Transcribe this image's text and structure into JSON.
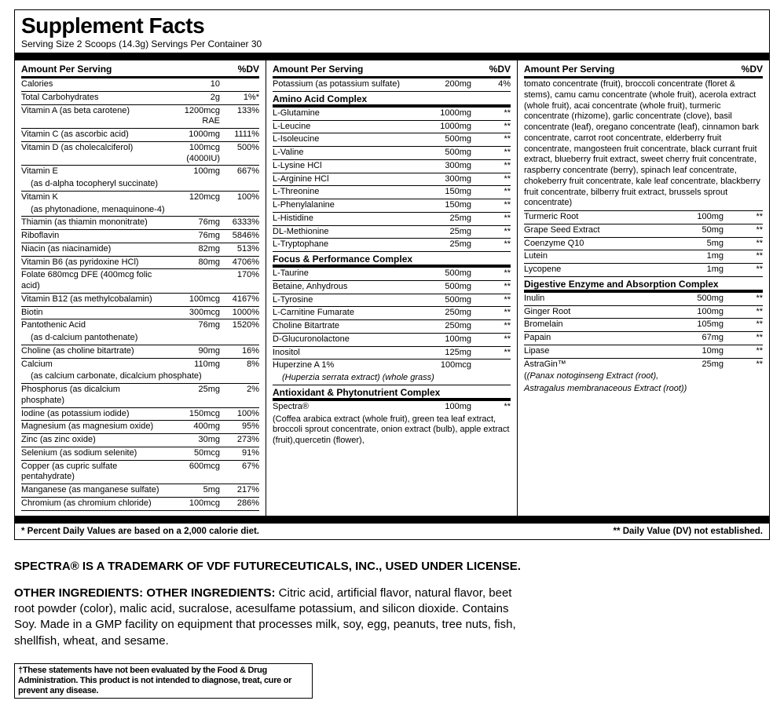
{
  "title": "Supplement Facts",
  "serving": "Serving Size 2 Scoops (14.3g)   Servings Per Container 30",
  "heads": {
    "amount": "Amount Per Serving",
    "dv": "%DV"
  },
  "col1": [
    {
      "n": "Calories",
      "a": "10",
      "d": ""
    },
    {
      "n": "Total Carbohydrates",
      "a": "2g",
      "d": "1%*"
    },
    {
      "n": "Vitamin A (as beta carotene)",
      "a": "1200mcg RAE",
      "d": "133%"
    },
    {
      "n": "Vitamin C (as ascorbic acid)",
      "a": "1000mg",
      "d": "1111%"
    },
    {
      "n": "Vitamin D (as cholecalciferol)",
      "a": "100mcg (4000IU)",
      "d": "500%"
    },
    {
      "n": "Vitamin E",
      "a": "100mg",
      "d": "667%",
      "nb": true
    },
    {
      "n": "  (as d-alpha tocopheryl succinate)",
      "a": "",
      "d": "",
      "sub": true
    },
    {
      "n": "Vitamin K",
      "a": "120mcg",
      "d": "100%",
      "nb": true
    },
    {
      "n": "  (as phytonadione, menaquinone-4)",
      "a": "",
      "d": "",
      "sub": true
    },
    {
      "n": "Thiamin (as thiamin mononitrate)",
      "a": "76mg",
      "d": "6333%"
    },
    {
      "n": "Riboflavin",
      "a": "76mg",
      "d": "5846%"
    },
    {
      "n": "Niacin (as niacinamide)",
      "a": "82mg",
      "d": "513%"
    },
    {
      "n": "Vitamin B6 (as pyridoxine HCl)",
      "a": "80mg",
      "d": "4706%"
    },
    {
      "n": "Folate        680mcg DFE (400mcg folic acid)",
      "a": "",
      "d": "170%"
    },
    {
      "n": "Vitamin B12 (as methylcobalamin)",
      "a": "100mcg",
      "d": "4167%"
    },
    {
      "n": "Biotin",
      "a": "300mcg",
      "d": "1000%"
    },
    {
      "n": "Pantothenic Acid",
      "a": "76mg",
      "d": "1520%",
      "nb": true
    },
    {
      "n": "  (as d-calcium pantothenate)",
      "a": "",
      "d": "",
      "sub": true
    },
    {
      "n": "Choline (as choline bitartrate)",
      "a": "90mg",
      "d": "16%"
    },
    {
      "n": "Calcium",
      "a": "110mg",
      "d": "8%",
      "nb": true
    },
    {
      "n": "  (as calcium carbonate, dicalcium phosphate)",
      "a": "",
      "d": "",
      "sub": true
    },
    {
      "n": "Phosphorus (as dicalcium phosphate)",
      "a": "25mg",
      "d": "2%"
    },
    {
      "n": "Iodine (as potassium iodide)",
      "a": "150mcg",
      "d": "100%"
    },
    {
      "n": "Magnesium (as magnesium oxide)",
      "a": "400mg",
      "d": "95%"
    },
    {
      "n": "Zinc (as zinc oxide)",
      "a": "30mg",
      "d": "273%"
    },
    {
      "n": "Selenium (as sodium selenite)",
      "a": "50mcg",
      "d": "91%"
    },
    {
      "n": "Copper (as cupric sulfate pentahydrate)",
      "a": "600mcg",
      "d": "67%"
    },
    {
      "n": "Manganese (as manganese sulfate)",
      "a": "5mg",
      "d": "217%"
    },
    {
      "n": "Chromium (as chromium chloride)",
      "a": "100mcg",
      "d": "286%"
    }
  ],
  "col2_top": [
    {
      "n": "Potassium (as potassium sulfate)",
      "a": "200mg",
      "d": "4%"
    }
  ],
  "sections2": [
    {
      "title": "Amino Acid Complex",
      "rows": [
        {
          "n": "L-Glutamine",
          "a": "1000mg",
          "d": "**"
        },
        {
          "n": "L-Leucine",
          "a": "1000mg",
          "d": "**"
        },
        {
          "n": "L-Isoleucine",
          "a": "500mg",
          "d": "**"
        },
        {
          "n": "L-Valine",
          "a": "500mg",
          "d": "**"
        },
        {
          "n": "L-Lysine HCl",
          "a": "300mg",
          "d": "**"
        },
        {
          "n": "L-Arginine HCl",
          "a": "300mg",
          "d": "**"
        },
        {
          "n": "L-Threonine",
          "a": "150mg",
          "d": "**"
        },
        {
          "n": "L-Phenylalanine",
          "a": "150mg",
          "d": "**"
        },
        {
          "n": "L-Histidine",
          "a": "25mg",
          "d": "**"
        },
        {
          "n": "DL-Methionine",
          "a": "25mg",
          "d": "**"
        },
        {
          "n": "L-Tryptophane",
          "a": "25mg",
          "d": "**"
        }
      ]
    },
    {
      "title": "Focus & Performance Complex",
      "rows": [
        {
          "n": "L-Taurine",
          "a": "500mg",
          "d": "**"
        },
        {
          "n": "Betaine, Anhydrous",
          "a": "500mg",
          "d": "**"
        },
        {
          "n": "L-Tyrosine",
          "a": "500mg",
          "d": "**"
        },
        {
          "n": "L-Carnitine Fumarate",
          "a": "250mg",
          "d": "**"
        },
        {
          "n": "Choline Bitartrate",
          "a": "250mg",
          "d": "**"
        },
        {
          "n": "D-Glucuronolactone",
          "a": "100mg",
          "d": "**"
        },
        {
          "n": "Inositol",
          "a": "125mg",
          "d": "**"
        },
        {
          "n": "Huperzine A 1%",
          "a": "100mcg",
          "d": "",
          "nb": true
        },
        {
          "n": "   (Huperzia serrata extract) (whole grass)",
          "a": "",
          "d": "",
          "sub": true,
          "ital": true
        }
      ]
    },
    {
      "title": "Antioxidant & Phytonutrient Complex",
      "rows": [
        {
          "n": "Spectra®",
          "a": "100mg",
          "d": "**",
          "nb": true
        }
      ]
    }
  ],
  "spectra_desc": "(Coffea arabica extract (whole fruit), green tea leaf extract, broccoli sprout concentrate, onion extract (bulb), apple extract (fruit),quercetin (flower),",
  "col3_cont": "tomato concentrate (fruit), broccoli concentrate (floret & stems), camu camu concentrate (whole fruit), acerola extract (whole fruit), acai concentrate (whole fruit), turmeric concentrate (rhizome), garlic concentrate (clove), basil concentrate (leaf), oregano concentrate (leaf), cinnamon bark concentrate, carrot root concentrate, elderberry fruit concentrate, mangosteen fruit concentrate, black currant fruit extract, blueberry fruit extract, sweet cherry fruit concentrate, raspberry concentrate (berry), spinach leaf concentrate, chokeberry fruit concentrate, kale leaf concentrate, blackberry fruit concentrate, bilberry fruit extract, brussels sprout concentrate)",
  "col3_rows": [
    {
      "n": "Turmeric Root",
      "a": "100mg",
      "d": "**"
    },
    {
      "n": "Grape Seed Extract",
      "a": "50mg",
      "d": "**"
    },
    {
      "n": "Coenzyme Q10",
      "a": "5mg",
      "d": "**"
    },
    {
      "n": "Lutein",
      "a": "1mg",
      "d": "**"
    },
    {
      "n": "Lycopene",
      "a": "1mg",
      "d": "**"
    }
  ],
  "section3": {
    "title": "Digestive Enzyme and Absorption Complex",
    "rows": [
      {
        "n": "Inulin",
        "a": "500mg",
        "d": "**"
      },
      {
        "n": "Ginger Root",
        "a": "100mg",
        "d": "**"
      },
      {
        "n": "Bromelain",
        "a": "105mg",
        "d": "**"
      },
      {
        "n": "Papain",
        "a": "67mg",
        "d": "**"
      },
      {
        "n": "Lipase",
        "a": "10mg",
        "d": "**"
      },
      {
        "n": "AstraGin™",
        "a": "25mg",
        "d": "**",
        "nb": true
      }
    ]
  },
  "astragin_desc1": "(Panax notoginseng Extract (root),",
  "astragin_desc2": "Astragalus membranaceous Extract (root))",
  "foot_left": "* Percent Daily Values are based on a 2,000 calorie diet.",
  "foot_right": "** Daily Value (DV) not established.",
  "trademark": "SPECTRA® IS A TRADEMARK OF VDF FUTURECEUTICALS, INC., USED UNDER LICENSE.",
  "other_label": "OTHER INGREDIENTS: OTHER INGREDIENTS:",
  "other_text": " Citric acid, artificial flavor, natural flavor, beet root powder (color), malic acid, sucralose, acesulfame potassium, and silicon dioxide. Contains Soy. Made in a GMP facility on equipment that processes milk, soy, egg, peanuts, tree nuts, fish, shellfish, wheat, and sesame.",
  "fda": "†These statements have not been evaluated by the Food & Drug Administration. This product is not intended to diagnose, treat, cure or prevent any disease."
}
